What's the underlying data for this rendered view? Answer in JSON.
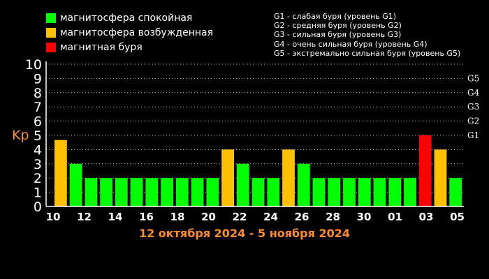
{
  "legend": [
    {
      "label": "магнитосфера спокойная",
      "color": "#00ff00"
    },
    {
      "label": "магнитосфера возбужденная",
      "color": "#ffc000"
    },
    {
      "label": "магнитная буря",
      "color": "#ff0000"
    }
  ],
  "storm_levels": [
    "G1 - слабая буря (уровень G1)",
    "G2 - средняя буря (уровень G2)",
    "G3 - сильная буря (уровень G3)",
    "G4 - очень сильная буря (уровень G4)",
    "G5 - экстремально сильная буря (уровень G5)"
  ],
  "colors": {
    "background": "#000000",
    "axis_text": "#ffffff",
    "accent": "#ff8c28",
    "grid": "#ffffff"
  },
  "chart_data": {
    "type": "bar",
    "ylabel": "Kp",
    "xlabel": "12 октября 2024 - 5 ноября 2024",
    "ylim": [
      0,
      10
    ],
    "yticks": [
      0,
      1,
      2,
      3,
      4,
      5,
      6,
      7,
      8,
      9,
      10
    ],
    "grid": true,
    "g_levels": [
      {
        "label": "G1",
        "kp": 5
      },
      {
        "label": "G2",
        "kp": 6
      },
      {
        "label": "G3",
        "kp": 7
      },
      {
        "label": "G4",
        "kp": 8
      },
      {
        "label": "G5",
        "kp": 9
      }
    ],
    "x_tick_labels": [
      "10",
      "12",
      "14",
      "16",
      "18",
      "20",
      "22",
      "24",
      "26",
      "28",
      "30",
      "01",
      "03",
      "05"
    ],
    "values": [
      4.67,
      3,
      2,
      2,
      2,
      2,
      2,
      2,
      2,
      2,
      2,
      4,
      3,
      2,
      2,
      4,
      3,
      2,
      2,
      2,
      2,
      2,
      2,
      2,
      5,
      4,
      2
    ],
    "bar_levels": [
      "active",
      "quiet",
      "quiet",
      "quiet",
      "quiet",
      "quiet",
      "quiet",
      "quiet",
      "quiet",
      "quiet",
      "quiet",
      "active",
      "quiet",
      "quiet",
      "quiet",
      "active",
      "quiet",
      "quiet",
      "quiet",
      "quiet",
      "quiet",
      "quiet",
      "quiet",
      "quiet",
      "storm",
      "active",
      "quiet"
    ]
  }
}
